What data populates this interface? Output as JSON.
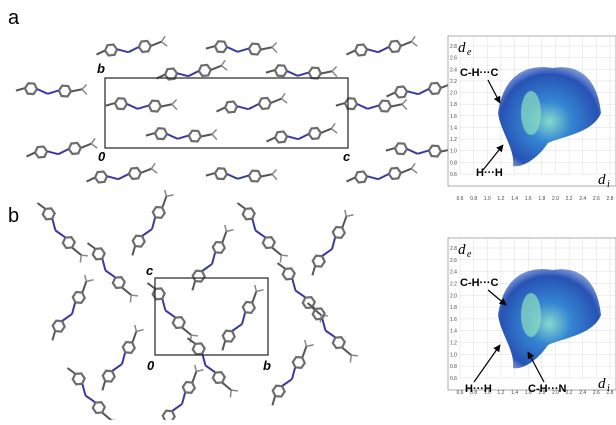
{
  "panels": [
    {
      "label": "a",
      "cell_labels": [
        "b",
        "0",
        "c"
      ],
      "plot": {
        "y_label": "d",
        "y_sub": "e",
        "x_label": "d",
        "x_sub": "i",
        "annotations": [
          "C-H···C",
          "H···H"
        ],
        "yticks": [
          "2.8",
          "2.6",
          "2.4",
          "2.2",
          "2.0",
          "1.8",
          "1.6",
          "1.4",
          "1.2",
          "1.0",
          "0.8",
          "0.6"
        ],
        "xticks": [
          "0.6",
          "0.8",
          "1.0",
          "1.2",
          "1.4",
          "1.6",
          "1.8",
          "2.0",
          "2.2",
          "2.4",
          "2.6",
          "2.8"
        ]
      }
    },
    {
      "label": "b",
      "cell_labels": [
        "c",
        "0",
        "b"
      ],
      "plot": {
        "y_label": "d",
        "y_sub": "e",
        "x_label": "d",
        "x_sub": "i",
        "annotations": [
          "C-H···C",
          "H···H",
          "C-H···N"
        ],
        "yticks": [
          "2.8",
          "2.6",
          "2.4",
          "2.2",
          "2.0",
          "1.8",
          "1.6",
          "1.4",
          "1.2",
          "1.0",
          "0.8",
          "0.6"
        ],
        "xticks": [
          "0.6",
          "0.8",
          "1.0",
          "1.2",
          "1.4",
          "1.6",
          "1.8",
          "2.0",
          "2.2",
          "2.4",
          "2.6",
          "2.8"
        ]
      }
    }
  ]
}
